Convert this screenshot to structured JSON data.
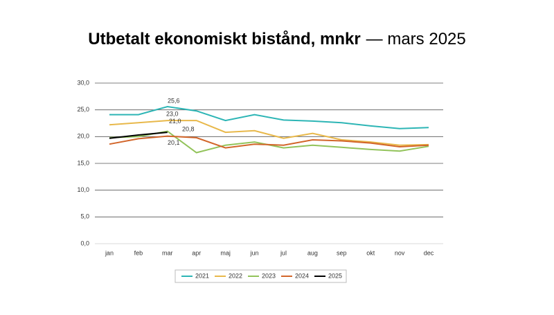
{
  "chart_data": {
    "type": "line",
    "title": "Utbetalt ekonomiskt bistånd, mnkr",
    "subtitle": "— mars 2025",
    "categories": [
      "jan",
      "feb",
      "mar",
      "apr",
      "maj",
      "jun",
      "jul",
      "aug",
      "sep",
      "okt",
      "nov",
      "dec"
    ],
    "ylim": [
      0,
      30
    ],
    "yticks": [
      {
        "value": 0,
        "label": "0,0"
      },
      {
        "value": 5,
        "label": "5,0"
      },
      {
        "value": 10,
        "label": "10,0"
      },
      {
        "value": 15,
        "label": "15,0"
      },
      {
        "value": 20,
        "label": "20,0"
      },
      {
        "value": 25,
        "label": "25,0"
      },
      {
        "value": 30,
        "label": "30,0"
      }
    ],
    "grid": true,
    "legend": "bottom",
    "series": [
      {
        "name": "2021",
        "color": "#2cb5b5",
        "values": [
          24.1,
          24.1,
          25.6,
          24.8,
          23.0,
          24.1,
          23.1,
          22.9,
          22.6,
          22.0,
          21.5,
          21.7
        ],
        "value_labels": [
          null,
          null,
          "25,6",
          null,
          null,
          null,
          null,
          null,
          null,
          null,
          null,
          null
        ]
      },
      {
        "name": "2022",
        "color": "#e8b84a",
        "values": [
          22.2,
          22.6,
          23.0,
          23.0,
          20.8,
          21.1,
          19.7,
          20.6,
          19.4,
          19.0,
          18.4,
          18.5
        ],
        "value_labels": [
          null,
          null,
          "23,0",
          null,
          null,
          null,
          null,
          null,
          null,
          null,
          null,
          null
        ]
      },
      {
        "name": "2023",
        "color": "#92c35a",
        "values": [
          19.8,
          20.0,
          21.0,
          17.0,
          18.4,
          19.0,
          17.9,
          18.4,
          18.0,
          17.6,
          17.3,
          18.2
        ],
        "value_labels": [
          null,
          null,
          "21,0",
          null,
          null,
          null,
          null,
          null,
          null,
          null,
          null,
          null
        ]
      },
      {
        "name": "2024",
        "color": "#d2652a",
        "values": [
          18.6,
          19.6,
          20.1,
          19.8,
          17.9,
          18.6,
          18.4,
          19.4,
          19.2,
          18.8,
          18.1,
          18.4
        ],
        "value_labels": [
          null,
          null,
          "20,1",
          null,
          null,
          null,
          null,
          null,
          null,
          null,
          null,
          null
        ]
      },
      {
        "name": "2025",
        "color": "#000000",
        "values": [
          19.7,
          20.3,
          20.8,
          null,
          null,
          null,
          null,
          null,
          null,
          null,
          null,
          null
        ],
        "value_labels": [
          null,
          null,
          "20,8",
          null,
          null,
          null,
          null,
          null,
          null,
          null,
          null,
          null
        ]
      }
    ]
  }
}
